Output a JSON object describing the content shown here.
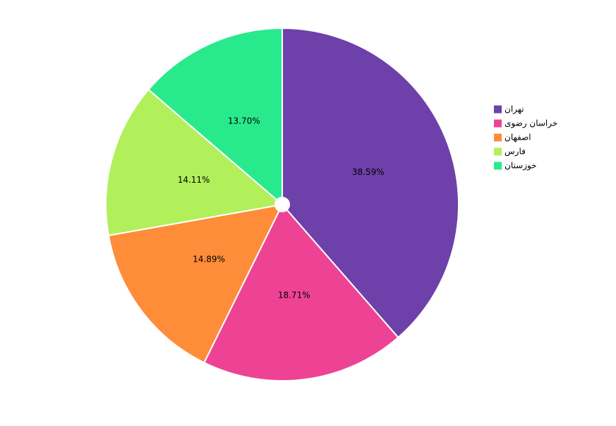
{
  "chart_data": {
    "type": "pie",
    "categories": [
      "تهران",
      "خراسان رضوی",
      "اصفهان",
      "فارس",
      "خوزستان"
    ],
    "values": [
      38.59,
      18.71,
      14.89,
      14.11,
      13.7
    ],
    "value_labels": [
      "38.59%",
      "18.71%",
      "14.89%",
      "14.11%",
      "13.70%"
    ],
    "colors": [
      "#6e40aa",
      "#ee4395",
      "#ff8c38",
      "#b1f05a",
      "#28ea8d"
    ],
    "legend": "right"
  }
}
